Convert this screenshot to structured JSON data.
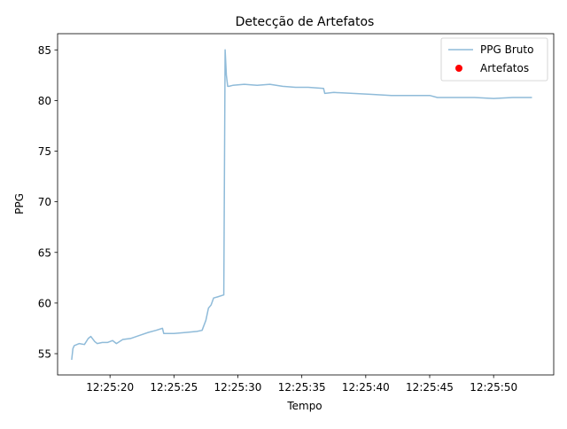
{
  "chart_data": {
    "type": "line",
    "title": "Detecção de Artefatos",
    "xlabel": "Tempo",
    "ylabel": "PPG",
    "xlim": [
      "12:25:15.9",
      "12:25:54.7"
    ],
    "ylim": [
      52.9,
      86.6
    ],
    "x_ticks": [
      "12:25:20",
      "12:25:25",
      "12:25:30",
      "12:25:35",
      "12:25:40",
      "12:25:45",
      "12:25:50"
    ],
    "y_ticks": [
      55,
      60,
      65,
      70,
      75,
      80,
      85
    ],
    "grid": false,
    "legend_position": "top-right",
    "legend": [
      {
        "label": "PPG Bruto",
        "marker": "line",
        "color": "#1f77b4"
      },
      {
        "label": "Artefatos",
        "marker": "dot",
        "color": "#ff0000"
      }
    ],
    "series": [
      {
        "name": "PPG Bruto",
        "color": "#1f77b4",
        "alpha": 0.5,
        "x": [
          "12:25:17.0",
          "12:25:17.1",
          "12:25:17.2",
          "12:25:17.6",
          "12:25:18.0",
          "12:25:18.3",
          "12:25:18.5",
          "12:25:18.8",
          "12:25:19.0",
          "12:25:19.4",
          "12:25:19.8",
          "12:25:20.2",
          "12:25:20.5",
          "12:25:21.0",
          "12:25:21.6",
          "12:25:22.3",
          "12:25:23.0",
          "12:25:23.6",
          "12:25:24.1",
          "12:25:24.2",
          "12:25:25.0",
          "12:25:26.0",
          "12:25:26.8",
          "12:25:27.2",
          "12:25:27.5",
          "12:25:27.7",
          "12:25:27.9",
          "12:25:28.1",
          "12:25:28.4",
          "12:25:28.9",
          "12:25:29.0",
          "12:25:29.1",
          "12:25:29.2",
          "12:25:29.3",
          "12:25:29.6",
          "12:25:30.5",
          "12:25:31.5",
          "12:25:32.5",
          "12:25:33.5",
          "12:25:34.5",
          "12:25:35.5",
          "12:25:36.7",
          "12:25:36.8",
          "12:25:37.5",
          "12:25:39.0",
          "12:25:40.5",
          "12:25:42.0",
          "12:25:43.5",
          "12:25:45.0",
          "12:25:45.6",
          "12:25:47.0",
          "12:25:48.5",
          "12:25:50.0",
          "12:25:51.5",
          "12:25:53.0"
        ],
        "y": [
          54.4,
          55.5,
          55.8,
          56.0,
          55.9,
          56.5,
          56.7,
          56.2,
          56.0,
          56.1,
          56.1,
          56.3,
          56.0,
          56.4,
          56.5,
          56.8,
          57.1,
          57.3,
          57.5,
          57.0,
          57.0,
          57.1,
          57.2,
          57.3,
          58.3,
          59.5,
          59.8,
          60.5,
          60.6,
          60.8,
          85.0,
          82.5,
          81.4,
          81.4,
          81.5,
          81.6,
          81.5,
          81.6,
          81.4,
          81.3,
          81.3,
          81.2,
          80.7,
          80.8,
          80.7,
          80.6,
          80.5,
          80.5,
          80.5,
          80.3,
          80.3,
          80.3,
          80.2,
          80.3,
          80.3
        ]
      }
    ],
    "artefatos": []
  }
}
